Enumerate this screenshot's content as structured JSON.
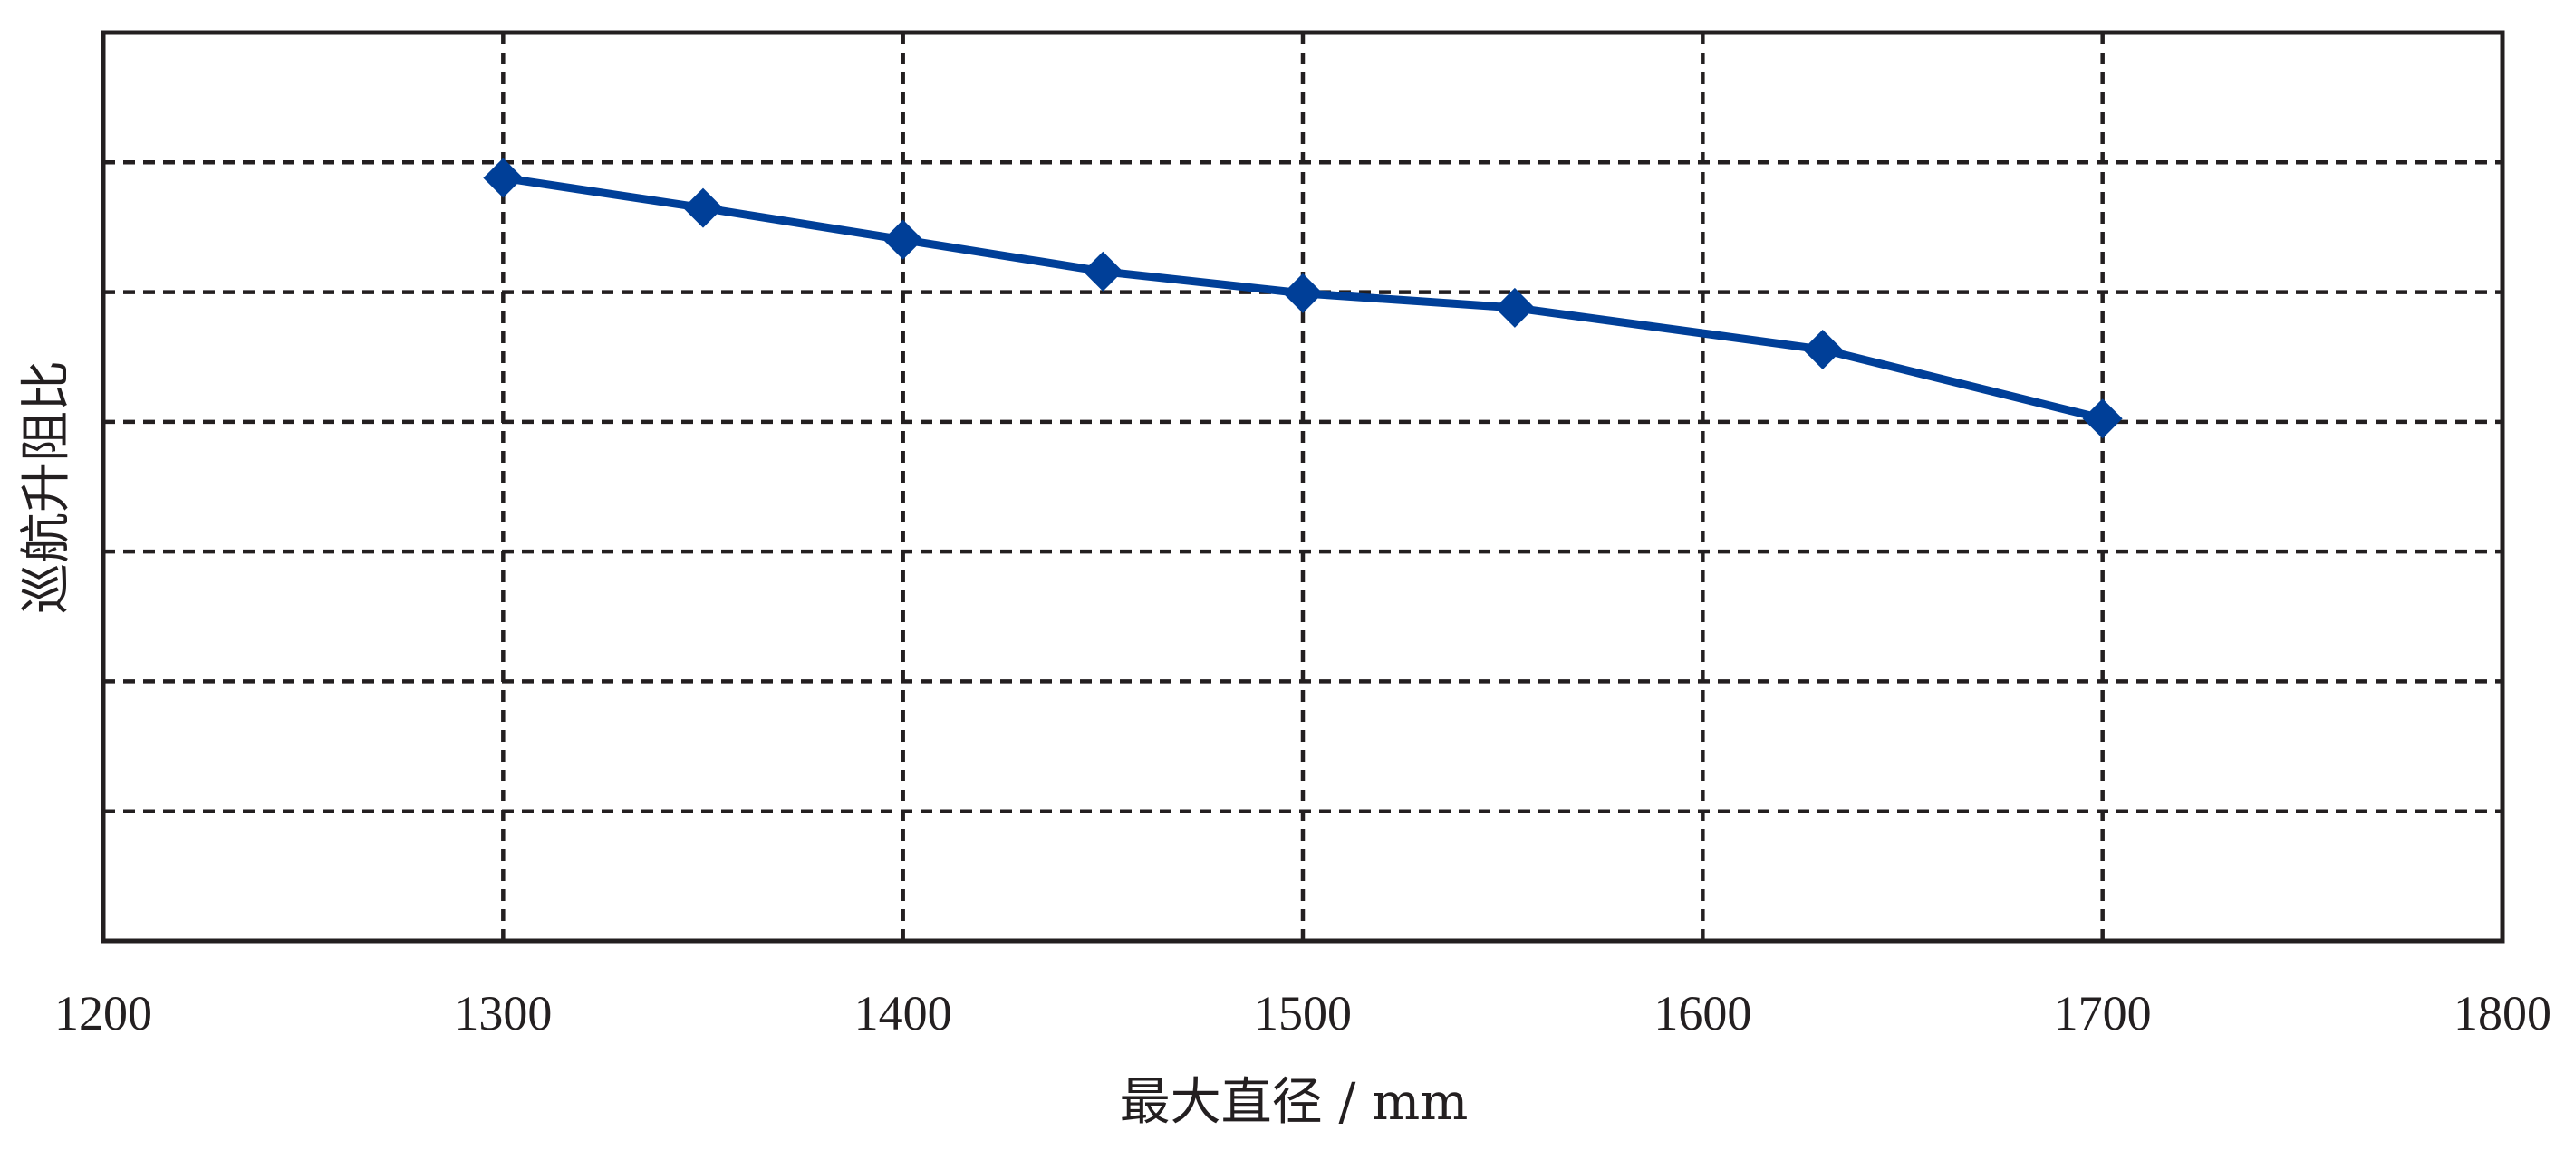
{
  "chart_data": {
    "type": "line",
    "title": "",
    "xlabel": "最大直径 / mm",
    "ylabel": "巡航升阻比",
    "xlim": [
      1200,
      1800
    ],
    "x_ticks": [
      "1200",
      "1300",
      "1400",
      "1500",
      "1600",
      "1700",
      "1800"
    ],
    "y_ticks": [],
    "y_gridline_count": 6,
    "grid": true,
    "legend": "none",
    "series": [
      {
        "x": [
          1300,
          1350,
          1400,
          1450,
          1500,
          1553,
          1630,
          1700
        ],
        "y": [
          0.84,
          0.807,
          0.772,
          0.737,
          0.713,
          0.697,
          0.651,
          0.575
        ],
        "color": "#003f98",
        "marker": "diamond"
      }
    ]
  }
}
